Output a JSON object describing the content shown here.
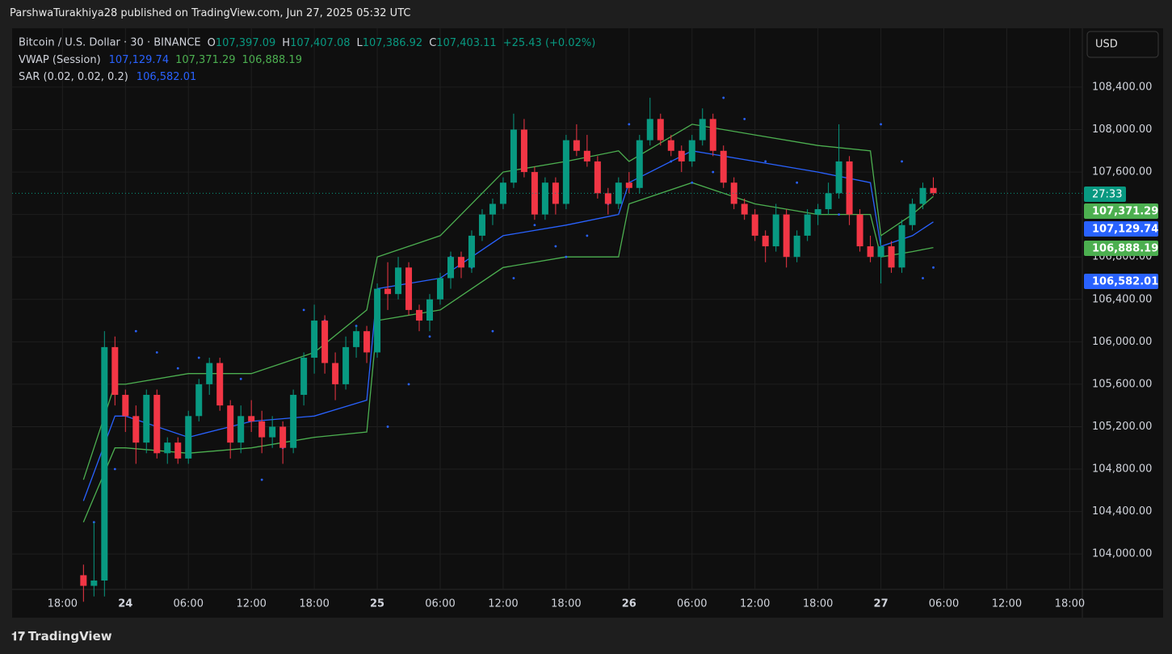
{
  "header": {
    "text": "ParshwaTurakhiya28 published on TradingView.com, Jun 27, 2025 05:32 UTC"
  },
  "footer": {
    "brand": "TradingView"
  },
  "chart_data": {
    "type": "candlestick",
    "currency": "USD",
    "countdown": "27:33",
    "legend": {
      "symbol": "Bitcoin / U.S. Dollar · 30 · BINANCE",
      "ohlc": [
        {
          "label": "O",
          "value": "107,397.09"
        },
        {
          "label": "H",
          "value": "107,407.08"
        },
        {
          "label": "L",
          "value": "107,386.92"
        },
        {
          "label": "C",
          "value": "107,403.11"
        }
      ],
      "change": "+25.43 (+0.02%)",
      "indicators": [
        {
          "name": "VWAP (Session)",
          "values": [
            "107,129.74",
            "107,371.29",
            "106,888.19"
          ]
        },
        {
          "name": "SAR (0.02, 0.02, 0.2)",
          "values": [
            "106,582.01"
          ]
        }
      ]
    },
    "up_color": "#089981",
    "down_color": "#f23645",
    "x": [
      2,
      3,
      4,
      5,
      6,
      7,
      8,
      9,
      10,
      11,
      12,
      13,
      14,
      15,
      16,
      17,
      18,
      19,
      20,
      21,
      22,
      23,
      24,
      25,
      26,
      27,
      28,
      29,
      30,
      31,
      32,
      33,
      34,
      35,
      36,
      37,
      38,
      39,
      40,
      41,
      42,
      43,
      44,
      45,
      46,
      47,
      48,
      49,
      50,
      51,
      52,
      53,
      54,
      55,
      56,
      57,
      58,
      59,
      60,
      61,
      62,
      63,
      64,
      65,
      66,
      67,
      68,
      69,
      70,
      71,
      72,
      73,
      74,
      75,
      76,
      77,
      78,
      79,
      80,
      81,
      82,
      83
    ],
    "candles": [
      [
        103800,
        103900,
        103550,
        103700
      ],
      [
        103700,
        104300,
        103600,
        103750
      ],
      [
        103750,
        106100,
        103600,
        105950
      ],
      [
        105950,
        106050,
        105400,
        105500
      ],
      [
        105500,
        105550,
        105150,
        105300
      ],
      [
        105300,
        105400,
        104850,
        105050
      ],
      [
        105050,
        105550,
        104950,
        105500
      ],
      [
        105500,
        105550,
        104900,
        104950
      ],
      [
        104950,
        105100,
        104850,
        105050
      ],
      [
        105050,
        105100,
        104850,
        104900
      ],
      [
        104900,
        105350,
        104850,
        105300
      ],
      [
        105300,
        105650,
        105250,
        105600
      ],
      [
        105600,
        105850,
        105500,
        105800
      ],
      [
        105800,
        105850,
        105350,
        105400
      ],
      [
        105400,
        105450,
        104900,
        105050
      ],
      [
        105050,
        105400,
        104950,
        105300
      ],
      [
        105300,
        105450,
        105150,
        105250
      ],
      [
        105250,
        105350,
        104950,
        105100
      ],
      [
        105100,
        105300,
        105000,
        105200
      ],
      [
        105200,
        105250,
        104850,
        105000
      ],
      [
        105000,
        105550,
        104950,
        105500
      ],
      [
        105500,
        105900,
        105400,
        105850
      ],
      [
        105850,
        106350,
        105700,
        106200
      ],
      [
        106200,
        106250,
        105700,
        105800
      ],
      [
        105800,
        105900,
        105450,
        105600
      ],
      [
        105600,
        106050,
        105550,
        105950
      ],
      [
        105950,
        106150,
        105850,
        106100
      ],
      [
        106100,
        106150,
        105800,
        105900
      ],
      [
        105900,
        106550,
        105850,
        106500
      ],
      [
        106500,
        106750,
        106300,
        106450
      ],
      [
        106450,
        106800,
        106400,
        106700
      ],
      [
        106700,
        106750,
        106250,
        106300
      ],
      [
        106300,
        106350,
        106100,
        106200
      ],
      [
        106200,
        106450,
        106100,
        106400
      ],
      [
        106400,
        106650,
        106350,
        106600
      ],
      [
        106600,
        106850,
        106500,
        106800
      ],
      [
        106800,
        106850,
        106600,
        106700
      ],
      [
        106700,
        107050,
        106650,
        107000
      ],
      [
        107000,
        107250,
        106950,
        107200
      ],
      [
        107200,
        107350,
        107100,
        107300
      ],
      [
        107300,
        107550,
        107250,
        107500
      ],
      [
        107500,
        108150,
        107450,
        108000
      ],
      [
        108000,
        108100,
        107550,
        107600
      ],
      [
        107600,
        107650,
        107150,
        107200
      ],
      [
        107200,
        107550,
        107150,
        107500
      ],
      [
        107500,
        107550,
        107200,
        107300
      ],
      [
        107300,
        107950,
        107250,
        107900
      ],
      [
        107900,
        108050,
        107750,
        107800
      ],
      [
        107800,
        107950,
        107650,
        107700
      ],
      [
        107700,
        107750,
        107350,
        107400
      ],
      [
        107400,
        107450,
        107200,
        107300
      ],
      [
        107300,
        107550,
        107250,
        107500
      ],
      [
        107500,
        107600,
        107400,
        107450
      ],
      [
        107450,
        107950,
        107400,
        107900
      ],
      [
        107900,
        108300,
        107850,
        108100
      ],
      [
        108100,
        108150,
        107850,
        107900
      ],
      [
        107900,
        107950,
        107750,
        107800
      ],
      [
        107800,
        107850,
        107600,
        107700
      ],
      [
        107700,
        107950,
        107650,
        107900
      ],
      [
        107900,
        108200,
        107850,
        108100
      ],
      [
        108100,
        108150,
        107750,
        107800
      ],
      [
        107800,
        107850,
        107450,
        107500
      ],
      [
        107500,
        107550,
        107250,
        107300
      ],
      [
        107300,
        107350,
        107150,
        107200
      ],
      [
        107200,
        107250,
        106950,
        107000
      ],
      [
        107000,
        107050,
        106750,
        106900
      ],
      [
        106900,
        107300,
        106850,
        107200
      ],
      [
        107200,
        107250,
        106700,
        106800
      ],
      [
        106800,
        107050,
        106750,
        107000
      ],
      [
        107000,
        107250,
        106950,
        107200
      ],
      [
        107200,
        107300,
        107100,
        107250
      ],
      [
        107250,
        107500,
        107200,
        107400
      ],
      [
        107400,
        108050,
        107350,
        107700
      ],
      [
        107700,
        107750,
        107100,
        107200
      ],
      [
        107200,
        107250,
        106850,
        106900
      ],
      [
        106900,
        107000,
        106750,
        106800
      ],
      [
        106800,
        107000,
        106550,
        106900
      ],
      [
        106900,
        106950,
        106650,
        106700
      ],
      [
        106700,
        107150,
        106650,
        107100
      ],
      [
        107100,
        107350,
        107050,
        107300
      ],
      [
        107300,
        107500,
        107250,
        107450
      ],
      [
        107450,
        107550,
        107380,
        107400
      ]
    ],
    "lines": [
      {
        "name": "VWAP",
        "color": "#2962ff",
        "x": [
          2,
          5,
          6,
          12,
          18,
          24,
          29,
          30,
          36,
          42,
          48,
          53,
          54,
          60,
          66,
          72,
          77,
          78,
          81,
          83
        ],
        "values": [
          104500,
          105300,
          105300,
          105100,
          105250,
          105300,
          105450,
          106500,
          106600,
          107000,
          107100,
          107200,
          107500,
          107800,
          107700,
          107600,
          107500,
          106900,
          107000,
          107130
        ]
      },
      {
        "name": "Upper Band",
        "color": "#4caf50",
        "x": [
          2,
          5,
          6,
          12,
          18,
          24,
          29,
          30,
          36,
          42,
          48,
          53,
          54,
          60,
          66,
          72,
          77,
          78,
          81,
          83
        ],
        "values": [
          104700,
          105600,
          105600,
          105700,
          105700,
          105900,
          106300,
          106800,
          107000,
          107600,
          107700,
          107800,
          107700,
          108050,
          107950,
          107850,
          107800,
          107000,
          107200,
          107371
        ]
      },
      {
        "name": "Lower Band",
        "color": "#4caf50",
        "x": [
          2,
          5,
          6,
          12,
          18,
          24,
          29,
          30,
          36,
          42,
          48,
          53,
          54,
          60,
          66,
          72,
          77,
          78,
          81,
          83
        ],
        "values": [
          104300,
          105000,
          105000,
          104950,
          105000,
          105100,
          105150,
          106200,
          106300,
          106700,
          106800,
          106800,
          107300,
          107500,
          107300,
          107200,
          107200,
          106800,
          106850,
          106888
        ]
      }
    ],
    "sar": {
      "color": "#2962ff",
      "x": [
        3,
        5,
        7,
        9,
        11,
        13,
        15,
        17,
        19,
        21,
        23,
        25,
        28,
        31,
        33,
        35,
        37,
        39,
        41,
        43,
        45,
        47,
        48,
        50,
        52,
        54,
        56,
        58,
        60,
        62,
        63,
        65,
        67,
        70,
        74,
        78,
        80,
        82,
        83
      ],
      "values": [
        104300,
        104800,
        106100,
        105900,
        105750,
        105850,
        105750,
        105650,
        104700,
        105000,
        106300,
        106200,
        106150,
        105200,
        105600,
        106050,
        106800,
        106700,
        106100,
        106600,
        107100,
        106900,
        106800,
        107000,
        107300,
        108050,
        108000,
        107700,
        107500,
        107600,
        108300,
        108100,
        107700,
        107500,
        107200,
        108050,
        107700,
        106600,
        106700
      ]
    },
    "xlim": [
      -4.8,
      97.2
    ],
    "xticks": [
      {
        "value": 0,
        "label": "18:00"
      },
      {
        "value": 6,
        "label": "24"
      },
      {
        "value": 12,
        "label": "06:00"
      },
      {
        "value": 18,
        "label": "12:00"
      },
      {
        "value": 24,
        "label": "18:00"
      },
      {
        "value": 30,
        "label": "25"
      },
      {
        "value": 36,
        "label": "06:00"
      },
      {
        "value": 42,
        "label": "12:00"
      },
      {
        "value": 48,
        "label": "18:00"
      },
      {
        "value": 54,
        "label": "26"
      },
      {
        "value": 60,
        "label": "06:00"
      },
      {
        "value": 66,
        "label": "12:00"
      },
      {
        "value": 72,
        "label": "18:00"
      },
      {
        "value": 78,
        "label": "27"
      },
      {
        "value": 84,
        "label": "06:00"
      },
      {
        "value": 90,
        "label": "12:00"
      },
      {
        "value": 96,
        "label": "18:00"
      }
    ],
    "ylim": [
      103400,
      108955
    ],
    "yticks": [
      {
        "value": 104000,
        "label": "104,000.00"
      },
      {
        "value": 104400,
        "label": "104,400.00"
      },
      {
        "value": 104800,
        "label": "104,800.00"
      },
      {
        "value": 105200,
        "label": "105,200.00"
      },
      {
        "value": 105600,
        "label": "105,600.00"
      },
      {
        "value": 106000,
        "label": "106,000.00"
      },
      {
        "value": 106400,
        "label": "106,400.00"
      },
      {
        "value": 106800,
        "label": "106,800.00"
      },
      {
        "value": 107200,
        "label": "107,200.00"
      },
      {
        "value": 107600,
        "label": "107,600.00"
      },
      {
        "value": 108000,
        "label": "108,000.00"
      },
      {
        "value": 108400,
        "label": "108,400.00"
      }
    ],
    "grid": true
  }
}
